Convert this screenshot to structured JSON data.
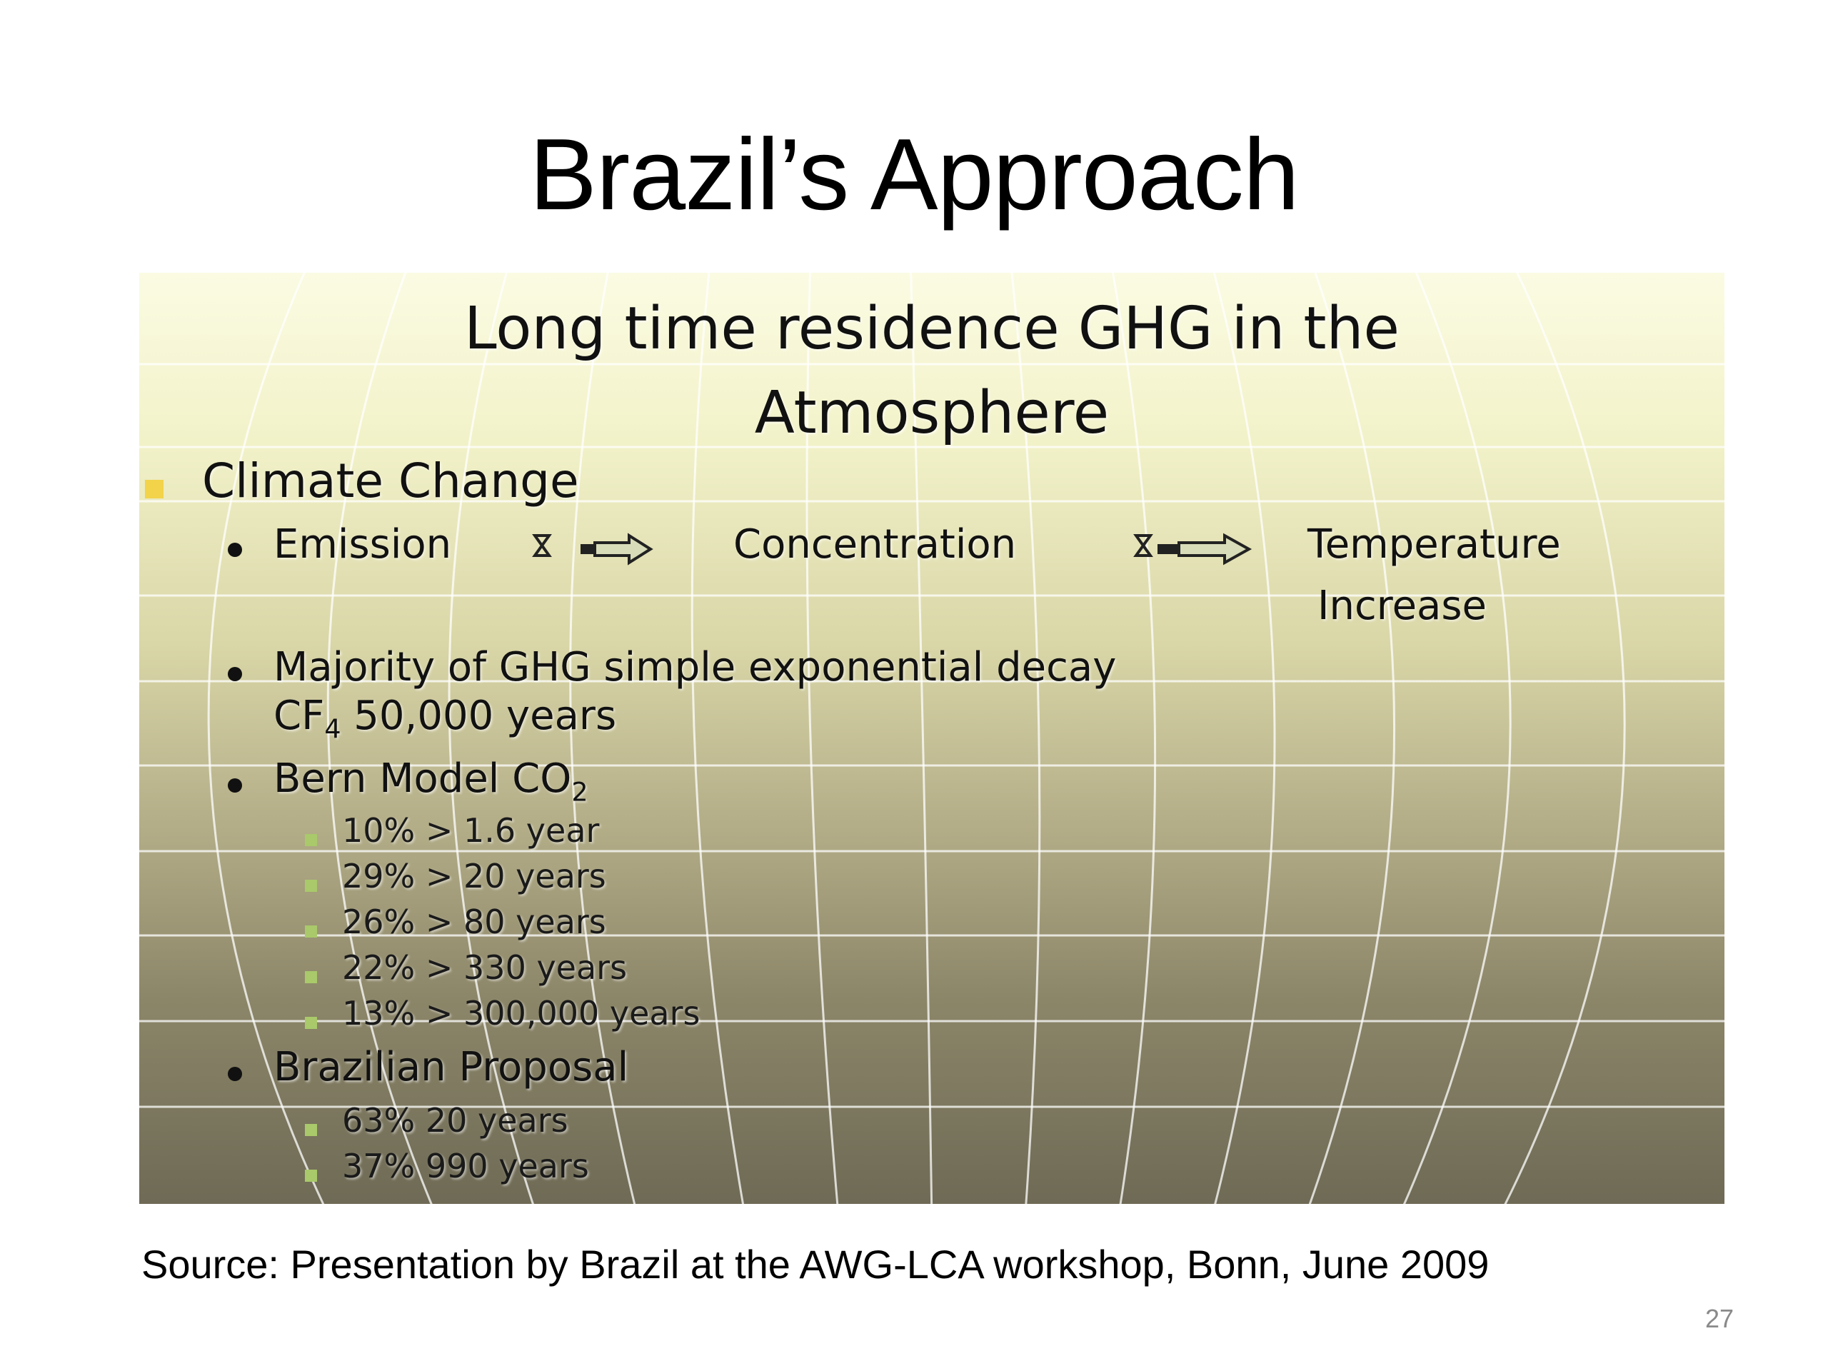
{
  "slide": {
    "title": "Brazil’s Approach",
    "page_number": "27",
    "source": "Source: Presentation by Brazil at the AWG-LCA  workshop, Bonn, June 2009"
  },
  "embedded_slide": {
    "heading_line1": "Long time residence GHG in the",
    "heading_line2": "Atmosphere",
    "topic": "Climate Change",
    "flow": {
      "step1": "Emission",
      "step2": "Concentration",
      "step3_line1": "Temperature",
      "step3_line2": "Increase"
    },
    "majority_line1": "Majority of GHG simple exponential decay",
    "majority_cf": "CF",
    "majority_cf_sub": "4",
    "majority_rest": " 50,000 years",
    "bern_label": "Bern Model CO",
    "bern_sub": "2",
    "bern_items": [
      "10% > 1.6 year",
      "29% > 20 years",
      "26% > 80 years",
      "22% > 330 years",
      "13% > 300,000 years"
    ],
    "proposal_label": "Brazilian Proposal",
    "proposal_items": [
      "63%  20 years",
      "37%  990 years"
    ],
    "colors": {
      "topic_bullet": "#f2d34a",
      "sub_bullet": "#a9c96a"
    }
  }
}
